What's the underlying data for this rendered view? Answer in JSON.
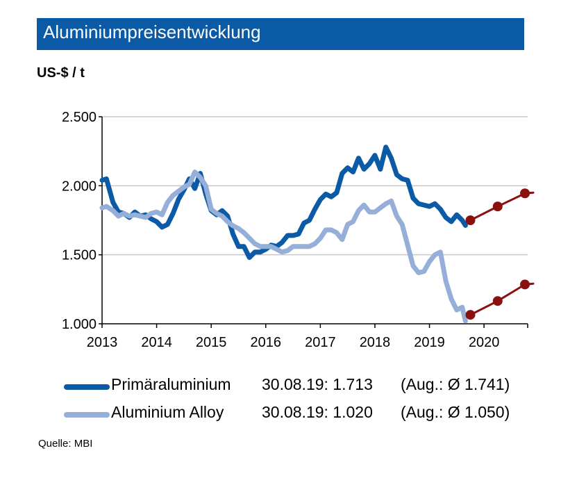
{
  "title": "Aluminiumpreisentwicklung",
  "unit_label": "US-$ / t",
  "source": "Quelle:  MBI",
  "colors": {
    "title_bg": "#0b5aa6",
    "primary": "#0b5aa6",
    "alloy": "#96afd9",
    "forecast": "#8b1010",
    "grid": "#c8c8c8"
  },
  "legend": [
    {
      "name": "Primäraluminium",
      "value": "30.08.19: 1.713",
      "avg": "(Aug.: Ø 1.741)"
    },
    {
      "name": "Aluminium Alloy",
      "value": "30.08.19: 1.020",
      "avg": "(Aug.: Ø 1.050)"
    }
  ],
  "chart_data": {
    "type": "line",
    "title": "Aluminiumpreisentwicklung",
    "ylabel": "US-$ / t",
    "ylim": [
      1000,
      2500
    ],
    "y_ticks": [
      "1.000",
      "1.500",
      "2.000",
      "2.500"
    ],
    "y_tick_values": [
      1000,
      1500,
      2000,
      2500
    ],
    "xlim": [
      2013.0,
      2020.8
    ],
    "x_ticks": [
      "2013",
      "2014",
      "2015",
      "2016",
      "2017",
      "2018",
      "2019",
      "2020"
    ],
    "grid": true,
    "series": [
      {
        "name": "Primäraluminium",
        "x": [
          2013.0,
          2013.08,
          2013.2,
          2013.3,
          2013.4,
          2013.5,
          2013.6,
          2013.7,
          2013.8,
          2013.9,
          2014.0,
          2014.1,
          2014.2,
          2014.3,
          2014.4,
          2014.5,
          2014.6,
          2014.7,
          2014.8,
          2014.9,
          2015.0,
          2015.1,
          2015.2,
          2015.3,
          2015.4,
          2015.5,
          2015.6,
          2015.7,
          2015.8,
          2015.9,
          2016.0,
          2016.1,
          2016.2,
          2016.3,
          2016.4,
          2016.5,
          2016.6,
          2016.7,
          2016.8,
          2016.9,
          2017.0,
          2017.1,
          2017.2,
          2017.3,
          2017.4,
          2017.5,
          2017.6,
          2017.7,
          2017.8,
          2017.9,
          2018.0,
          2018.1,
          2018.2,
          2018.3,
          2018.4,
          2018.5,
          2018.6,
          2018.7,
          2018.8,
          2018.9,
          2019.0,
          2019.1,
          2019.2,
          2019.3,
          2019.4,
          2019.5,
          2019.6,
          2019.66
        ],
        "values": [
          2040,
          2050,
          1880,
          1810,
          1800,
          1770,
          1810,
          1780,
          1790,
          1760,
          1740,
          1700,
          1720,
          1800,
          1900,
          1970,
          2050,
          1980,
          2090,
          1940,
          1820,
          1790,
          1820,
          1780,
          1650,
          1560,
          1560,
          1480,
          1520,
          1520,
          1540,
          1570,
          1560,
          1590,
          1640,
          1640,
          1650,
          1730,
          1750,
          1830,
          1900,
          1940,
          1920,
          1950,
          2090,
          2130,
          2100,
          2200,
          2120,
          2160,
          2220,
          2120,
          2280,
          2200,
          2080,
          2050,
          2040,
          1910,
          1870,
          1860,
          1850,
          1870,
          1830,
          1770,
          1740,
          1790,
          1750,
          1713
        ]
      },
      {
        "name": "Aluminium Alloy",
        "x": [
          2013.0,
          2013.08,
          2013.2,
          2013.3,
          2013.4,
          2013.5,
          2013.6,
          2013.7,
          2013.8,
          2013.9,
          2014.0,
          2014.1,
          2014.2,
          2014.3,
          2014.4,
          2014.5,
          2014.6,
          2014.7,
          2014.8,
          2014.9,
          2015.0,
          2015.1,
          2015.2,
          2015.3,
          2015.4,
          2015.5,
          2015.6,
          2015.7,
          2015.8,
          2015.9,
          2016.0,
          2016.1,
          2016.2,
          2016.3,
          2016.4,
          2016.5,
          2016.6,
          2016.7,
          2016.8,
          2016.9,
          2017.0,
          2017.1,
          2017.2,
          2017.3,
          2017.4,
          2017.5,
          2017.6,
          2017.7,
          2017.8,
          2017.9,
          2018.0,
          2018.1,
          2018.2,
          2018.3,
          2018.4,
          2018.5,
          2018.6,
          2018.7,
          2018.8,
          2018.9,
          2019.0,
          2019.1,
          2019.2,
          2019.3,
          2019.4,
          2019.5,
          2019.6,
          2019.66
        ],
        "values": [
          1840,
          1850,
          1820,
          1780,
          1800,
          1780,
          1790,
          1780,
          1770,
          1800,
          1810,
          1790,
          1880,
          1930,
          1960,
          1990,
          2010,
          2100,
          2060,
          2000,
          1830,
          1800,
          1780,
          1740,
          1710,
          1690,
          1660,
          1620,
          1580,
          1560,
          1560,
          1560,
          1540,
          1520,
          1530,
          1560,
          1560,
          1560,
          1560,
          1580,
          1620,
          1680,
          1680,
          1660,
          1610,
          1720,
          1740,
          1820,
          1860,
          1810,
          1810,
          1840,
          1870,
          1890,
          1780,
          1720,
          1570,
          1420,
          1370,
          1380,
          1450,
          1500,
          1520,
          1310,
          1180,
          1100,
          1120,
          1020
        ]
      },
      {
        "name": "",
        "x": [
          2019.75,
          2020.25,
          2020.75
        ],
        "values": [
          1750,
          1850,
          1945
        ]
      },
      {
        "name": "",
        "x": [
          2019.75,
          2020.25,
          2020.75
        ],
        "values": [
          1065,
          1165,
          1285
        ]
      }
    ]
  }
}
